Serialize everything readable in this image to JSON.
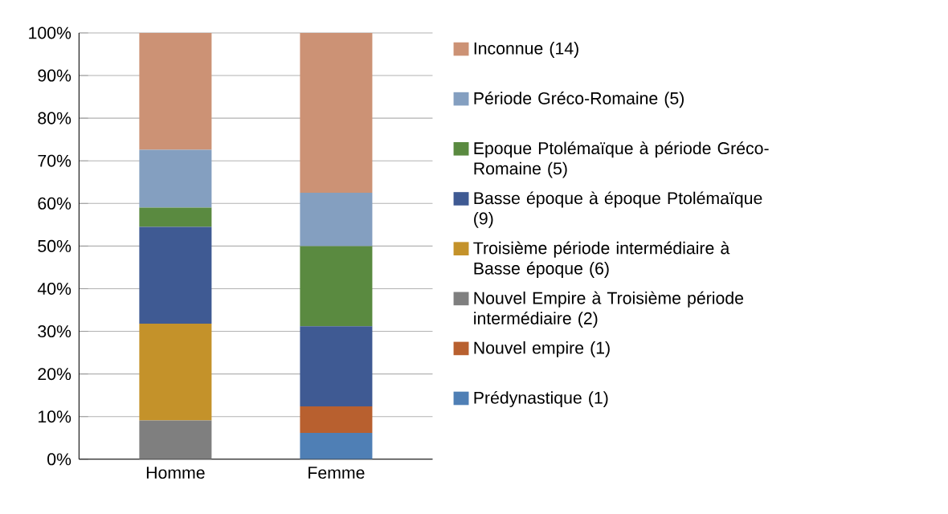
{
  "chart_data": {
    "type": "bar",
    "stacked": true,
    "categories": [
      "Homme",
      "Femme"
    ],
    "series": [
      {
        "name": "Prédynastique (1)",
        "color": "#4f7fb5",
        "values": [
          0,
          6.2
        ]
      },
      {
        "name": "Nouvel empire (1)",
        "color": "#b8602f",
        "values": [
          0,
          6.2
        ]
      },
      {
        "name": "Nouvel Empire à Troisième période intermédiaire (2)",
        "color": "#7f7f7f",
        "values": [
          9.1,
          0
        ]
      },
      {
        "name": "Troisième période intermédiaire à Basse époque (6)",
        "color": "#c4922a",
        "values": [
          22.7,
          0
        ]
      },
      {
        "name": "Basse époque à époque Ptolémaïque (9)",
        "color": "#3f5a93",
        "values": [
          22.7,
          18.8
        ]
      },
      {
        "name": "Epoque Ptolémaïque à période Gréco-Romaine (5)",
        "color": "#5a8a40",
        "values": [
          4.5,
          18.8
        ]
      },
      {
        "name": "Période Gréco-Romaine (5)",
        "color": "#849fc0",
        "values": [
          13.6,
          12.5
        ]
      },
      {
        "name": "Inconnue (14)",
        "color": "#cc9275",
        "values": [
          27.4,
          37.5
        ]
      }
    ],
    "ylim": [
      0,
      100
    ],
    "yticks": [
      {
        "value": 0,
        "label": "0%"
      },
      {
        "value": 10,
        "label": "10%"
      },
      {
        "value": 20,
        "label": "20%"
      },
      {
        "value": 30,
        "label": "30%"
      },
      {
        "value": 40,
        "label": "40%"
      },
      {
        "value": 50,
        "label": "50%"
      },
      {
        "value": 60,
        "label": "60%"
      },
      {
        "value": 70,
        "label": "70%"
      },
      {
        "value": 80,
        "label": "80%"
      },
      {
        "value": 90,
        "label": "90%"
      },
      {
        "value": 100,
        "label": "100%"
      }
    ],
    "grid": "y",
    "legend": "right"
  }
}
